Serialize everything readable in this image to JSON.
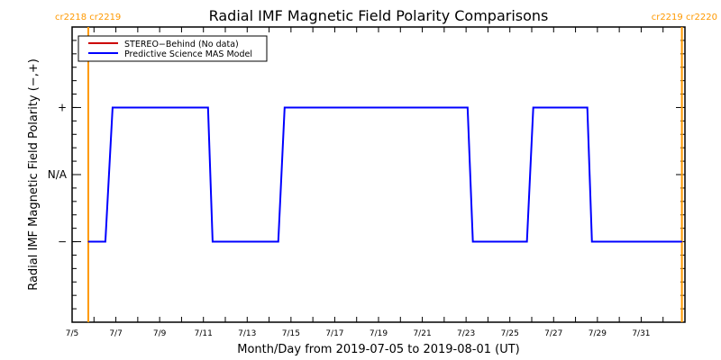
{
  "chart_data": {
    "type": "line",
    "title": "Radial IMF Magnetic Field Polarity Comparisons",
    "xlabel": "Month/Day from 2019-07-05 to 2019-08-01 (UT)",
    "ylabel": "Radial IMF Magnetic Field Polarity (−,+)",
    "x_unit": "days since 2019-07-05 00:00 UT",
    "xlim": [
      0,
      28
    ],
    "ylim": [
      -2.2,
      2.2
    ],
    "x_ticks": [
      {
        "value": 0,
        "label": "7/5"
      },
      {
        "value": 2,
        "label": "7/7"
      },
      {
        "value": 4,
        "label": "7/9"
      },
      {
        "value": 6,
        "label": "7/11"
      },
      {
        "value": 8,
        "label": "7/13"
      },
      {
        "value": 10,
        "label": "7/15"
      },
      {
        "value": 12,
        "label": "7/17"
      },
      {
        "value": 14,
        "label": "7/19"
      },
      {
        "value": 16,
        "label": "7/21"
      },
      {
        "value": 18,
        "label": "7/23"
      },
      {
        "value": 20,
        "label": "7/25"
      },
      {
        "value": 22,
        "label": "7/27"
      },
      {
        "value": 24,
        "label": "7/29"
      },
      {
        "value": 26,
        "label": "7/31"
      }
    ],
    "y_ticks": [
      {
        "value": 1,
        "label": "+"
      },
      {
        "value": 0,
        "label": "N/A"
      },
      {
        "value": -1,
        "label": "−"
      }
    ],
    "carrington_markers": [
      {
        "value": 0.74,
        "label": "cr2218 cr2219",
        "color": "#ff9900",
        "side": "left"
      },
      {
        "value": 27.86,
        "label": "cr2219 cr2220",
        "color": "#ff9900",
        "side": "right"
      }
    ],
    "legend": {
      "placement": "top-left",
      "entries": [
        {
          "name": "STEREO−Behind (No data)",
          "color": "#cc0000"
        },
        {
          "name": "Predictive Science MAS Model",
          "color": "#0000ff"
        }
      ]
    },
    "series": [
      {
        "name": "Predictive Science MAS Model",
        "color": "#0000ff",
        "x": [
          0.74,
          1.52,
          1.85,
          6.21,
          6.42,
          9.42,
          9.71,
          18.07,
          18.31,
          20.78,
          21.07,
          23.54,
          23.75,
          27.86
        ],
        "y": [
          -1,
          -1,
          1,
          1,
          -1,
          -1,
          1,
          1,
          -1,
          -1,
          1,
          1,
          -1,
          -1
        ]
      },
      {
        "name": "STEREO−Behind (No data)",
        "color": "#cc0000",
        "x": [],
        "y": []
      }
    ]
  }
}
